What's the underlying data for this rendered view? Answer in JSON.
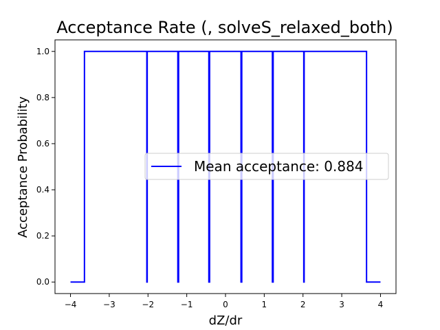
{
  "chart_data": {
    "type": "line",
    "title": "Acceptance Rate (, solveS_relaxed_both)",
    "xlabel": "dZ/dr",
    "ylabel": "Acceptance Probability",
    "xlim": [
      -4.4,
      4.4
    ],
    "ylim": [
      -0.05,
      1.05
    ],
    "xticks": [
      -4,
      -3,
      -2,
      -1,
      0,
      1,
      2,
      3,
      4
    ],
    "xtick_labels": [
      "−4",
      "−3",
      "−2",
      "−1",
      "0",
      "1",
      "2",
      "3",
      "4"
    ],
    "yticks": [
      0.0,
      0.2,
      0.4,
      0.6,
      0.8,
      1.0
    ],
    "ytick_labels": [
      "0.0",
      "0.2",
      "0.4",
      "0.6",
      "0.8",
      "1.0"
    ],
    "grid": false,
    "legend_position": "center-right",
    "series": [
      {
        "name": "Mean acceptance: 0.884",
        "color": "#0000ff",
        "x": [
          -4.0,
          -3.64,
          -3.64,
          -2.03,
          -2.03,
          -2.02,
          -2.02,
          -1.23,
          -1.23,
          -1.21,
          -1.21,
          -0.43,
          -0.43,
          -0.41,
          -0.41,
          0.4,
          0.4,
          0.42,
          0.42,
          1.21,
          1.21,
          1.23,
          1.23,
          2.02,
          2.02,
          2.03,
          2.03,
          3.64,
          3.64,
          4.0
        ],
        "y": [
          0,
          0,
          1,
          1,
          0,
          0,
          1,
          1,
          0,
          0,
          1,
          1,
          0,
          0,
          1,
          1,
          0,
          0,
          1,
          1,
          0,
          0,
          1,
          1,
          0,
          0,
          1,
          1,
          0,
          0
        ]
      }
    ]
  }
}
